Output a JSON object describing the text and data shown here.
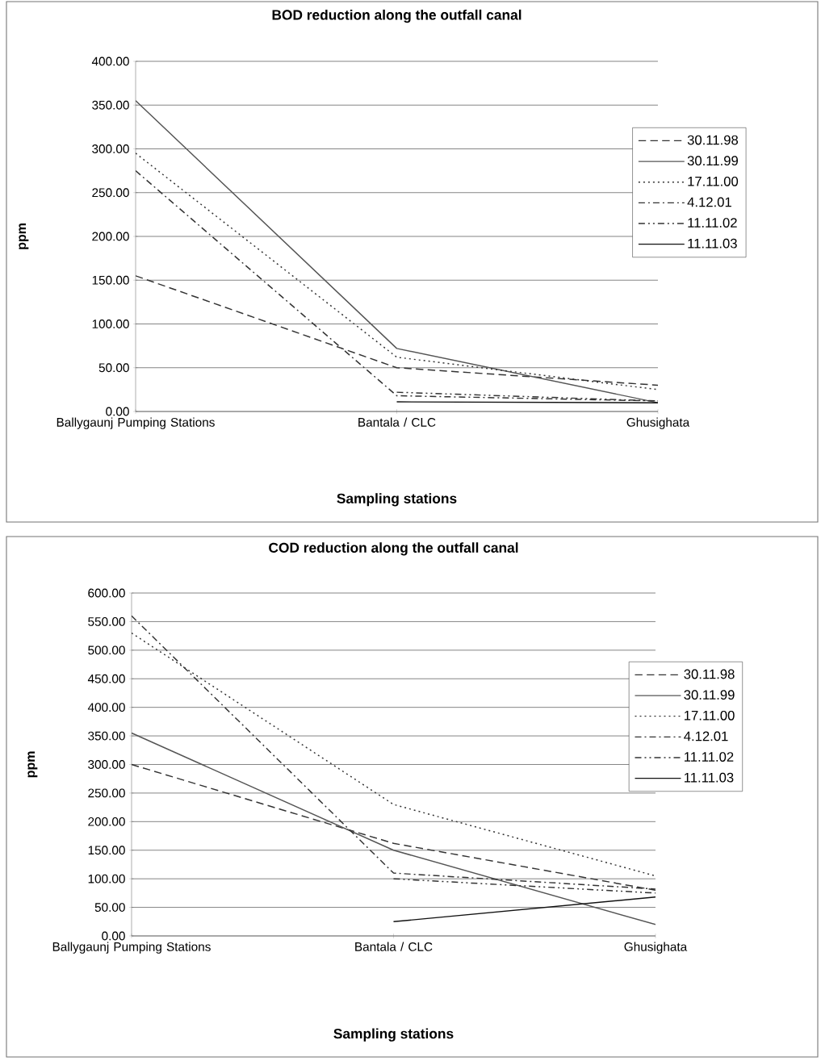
{
  "chart_data": [
    {
      "type": "line",
      "title": "BOD reduction along the outfall canal",
      "xlabel": "Sampling stations",
      "ylabel": "ppm",
      "categories": [
        "Ballygaunj Pumping Stations",
        "Bantala / CLC",
        "Ghusighata"
      ],
      "ylim": [
        0,
        400
      ],
      "yticks": [
        {
          "value": 0,
          "label": "0.00"
        },
        {
          "value": 50,
          "label": "50.00"
        },
        {
          "value": 100,
          "label": "100.00"
        },
        {
          "value": 150,
          "label": "150.00"
        },
        {
          "value": 200,
          "label": "200.00"
        },
        {
          "value": 250,
          "label": "250.00"
        },
        {
          "value": 300,
          "label": "300.00"
        },
        {
          "value": 350,
          "label": "350.00"
        },
        {
          "value": 400,
          "label": "400.00"
        }
      ],
      "grid": "y",
      "legend": "right",
      "series": [
        {
          "name": "30.11.98",
          "color": "#333333",
          "line_style": "dashed",
          "values": [
            155,
            50,
            30
          ]
        },
        {
          "name": "30.11.99",
          "color": "#555555",
          "line_style": "solid",
          "values": [
            355,
            72,
            10
          ]
        },
        {
          "name": "17.11.00",
          "color": "#333333",
          "line_style": "dotted",
          "values": [
            295,
            62,
            25
          ]
        },
        {
          "name": "4.12.01",
          "color": "#333333",
          "line_style": "dashdot",
          "values": [
            275,
            18,
            12
          ]
        },
        {
          "name": "11.11.02",
          "color": "#333333",
          "line_style": "dashdotdot",
          "values": [
            null,
            22,
            12
          ]
        },
        {
          "name": "11.11.03",
          "color": "#111111",
          "line_style": "solid",
          "values": [
            null,
            11,
            10
          ]
        }
      ]
    },
    {
      "type": "line",
      "title": "COD reduction along the outfall canal",
      "xlabel": "Sampling stations",
      "ylabel": "ppm",
      "categories": [
        "Ballygaunj Pumping Stations",
        "Bantala / CLC",
        "Ghusighata"
      ],
      "ylim": [
        0,
        600
      ],
      "yticks": [
        {
          "value": 0,
          "label": "0.00"
        },
        {
          "value": 50,
          "label": "50.00"
        },
        {
          "value": 100,
          "label": "100.00"
        },
        {
          "value": 150,
          "label": "150.00"
        },
        {
          "value": 200,
          "label": "200.00"
        },
        {
          "value": 250,
          "label": "250.00"
        },
        {
          "value": 300,
          "label": "300.00"
        },
        {
          "value": 350,
          "label": "350.00"
        },
        {
          "value": 400,
          "label": "400.00"
        },
        {
          "value": 450,
          "label": "450.00"
        },
        {
          "value": 500,
          "label": "500.00"
        },
        {
          "value": 550,
          "label": "550.00"
        },
        {
          "value": 600,
          "label": "600.00"
        }
      ],
      "grid": "y",
      "legend": "right",
      "series": [
        {
          "name": "30.11.98",
          "color": "#333333",
          "line_style": "dashed",
          "values": [
            300,
            162,
            80
          ]
        },
        {
          "name": "30.11.99",
          "color": "#555555",
          "line_style": "solid",
          "values": [
            355,
            150,
            20
          ]
        },
        {
          "name": "17.11.00",
          "color": "#333333",
          "line_style": "dotted",
          "values": [
            530,
            230,
            105
          ]
        },
        {
          "name": "4.12.01",
          "color": "#333333",
          "line_style": "dashdot",
          "values": [
            560,
            110,
            82
          ]
        },
        {
          "name": "11.11.02",
          "color": "#333333",
          "line_style": "dashdotdot",
          "values": [
            null,
            100,
            75
          ]
        },
        {
          "name": "11.11.03",
          "color": "#111111",
          "line_style": "solid",
          "values": [
            null,
            25,
            68
          ]
        }
      ]
    }
  ]
}
